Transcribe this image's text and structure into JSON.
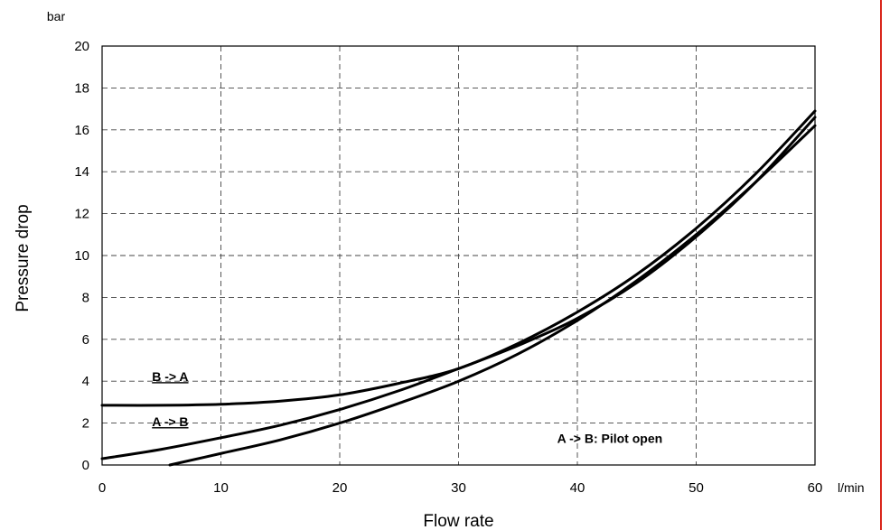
{
  "colors": {
    "right_border": "#d9261c",
    "line": "#000000"
  },
  "chart_data": {
    "type": "line",
    "xlabel": "Flow rate",
    "ylabel": "Pressure drop",
    "x_unit": "l/min",
    "y_unit": "bar",
    "xlim": [
      0,
      60
    ],
    "ylim": [
      0,
      20
    ],
    "x_ticks": [
      0,
      10,
      20,
      30,
      40,
      50,
      60
    ],
    "y_ticks": [
      0,
      2,
      4,
      6,
      8,
      10,
      12,
      14,
      16,
      18,
      20
    ],
    "grid": true,
    "series": [
      {
        "name": "B -> A",
        "x": [
          0,
          5,
          10,
          15,
          20,
          25,
          30,
          35,
          40,
          45,
          50,
          55,
          60
        ],
        "y": [
          2.85,
          2.85,
          2.9,
          3.05,
          3.35,
          3.9,
          4.6,
          5.8,
          7.3,
          9.1,
          11.3,
          13.9,
          16.9
        ]
      },
      {
        "name": "A -> B",
        "x": [
          0,
          5,
          10,
          15,
          20,
          25,
          30,
          35,
          40,
          45,
          50,
          55,
          60
        ],
        "y": [
          0.3,
          0.75,
          1.3,
          1.9,
          2.65,
          3.55,
          4.6,
          5.7,
          7.0,
          8.7,
          10.9,
          13.5,
          16.6
        ]
      },
      {
        "name": "A -> B: Pilot open",
        "x": [
          5.7,
          10,
          15,
          20,
          25,
          30,
          35,
          40,
          45,
          50,
          55,
          60
        ],
        "y": [
          0,
          0.55,
          1.2,
          2.0,
          2.95,
          4.0,
          5.3,
          6.9,
          8.8,
          11.0,
          13.5,
          16.2
        ]
      }
    ],
    "annotations": [
      {
        "text": "B -> A",
        "x": 4.2,
        "y": 4.0,
        "underline": true
      },
      {
        "text": "A -> B",
        "x": 4.2,
        "y": 1.85,
        "underline": true
      },
      {
        "text": "A -> B: Pilot open",
        "x": 38.3,
        "y": 1.05,
        "underline": false
      }
    ]
  }
}
